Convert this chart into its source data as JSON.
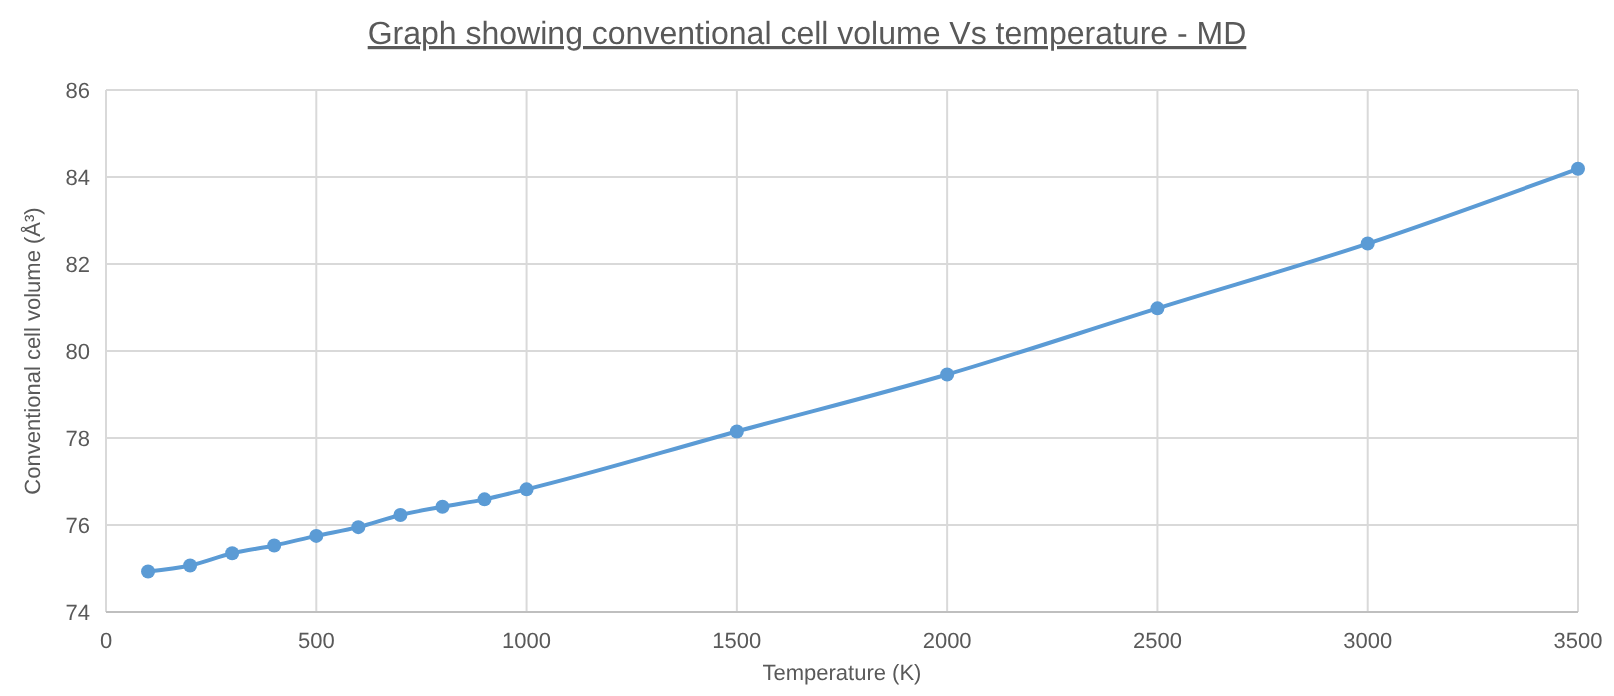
{
  "chart_data": {
    "type": "line",
    "title": "Graph showing conventional cell volume Vs temperature - MD",
    "xlabel": "Temperature (K)",
    "ylabel": "Conventional cell volume (Å³)",
    "x": [
      100,
      200,
      300,
      400,
      500,
      600,
      700,
      800,
      900,
      1000,
      1500,
      2000,
      2500,
      3000,
      3500
    ],
    "series": [
      {
        "color": "#5b9bd5",
        "values": [
          74.93,
          75.07,
          75.35,
          75.53,
          75.75,
          75.95,
          76.23,
          76.42,
          76.59,
          76.82,
          78.15,
          79.46,
          80.98,
          82.47,
          84.19
        ]
      }
    ],
    "xlim": [
      0,
      3500
    ],
    "xticks": [
      0,
      500,
      1000,
      1500,
      2000,
      2500,
      3000,
      3500
    ],
    "ylim": [
      74,
      86
    ],
    "yticks": [
      74,
      76,
      78,
      80,
      82,
      84,
      86
    ],
    "grid": true,
    "marker": "circle",
    "line_style": "solid"
  }
}
